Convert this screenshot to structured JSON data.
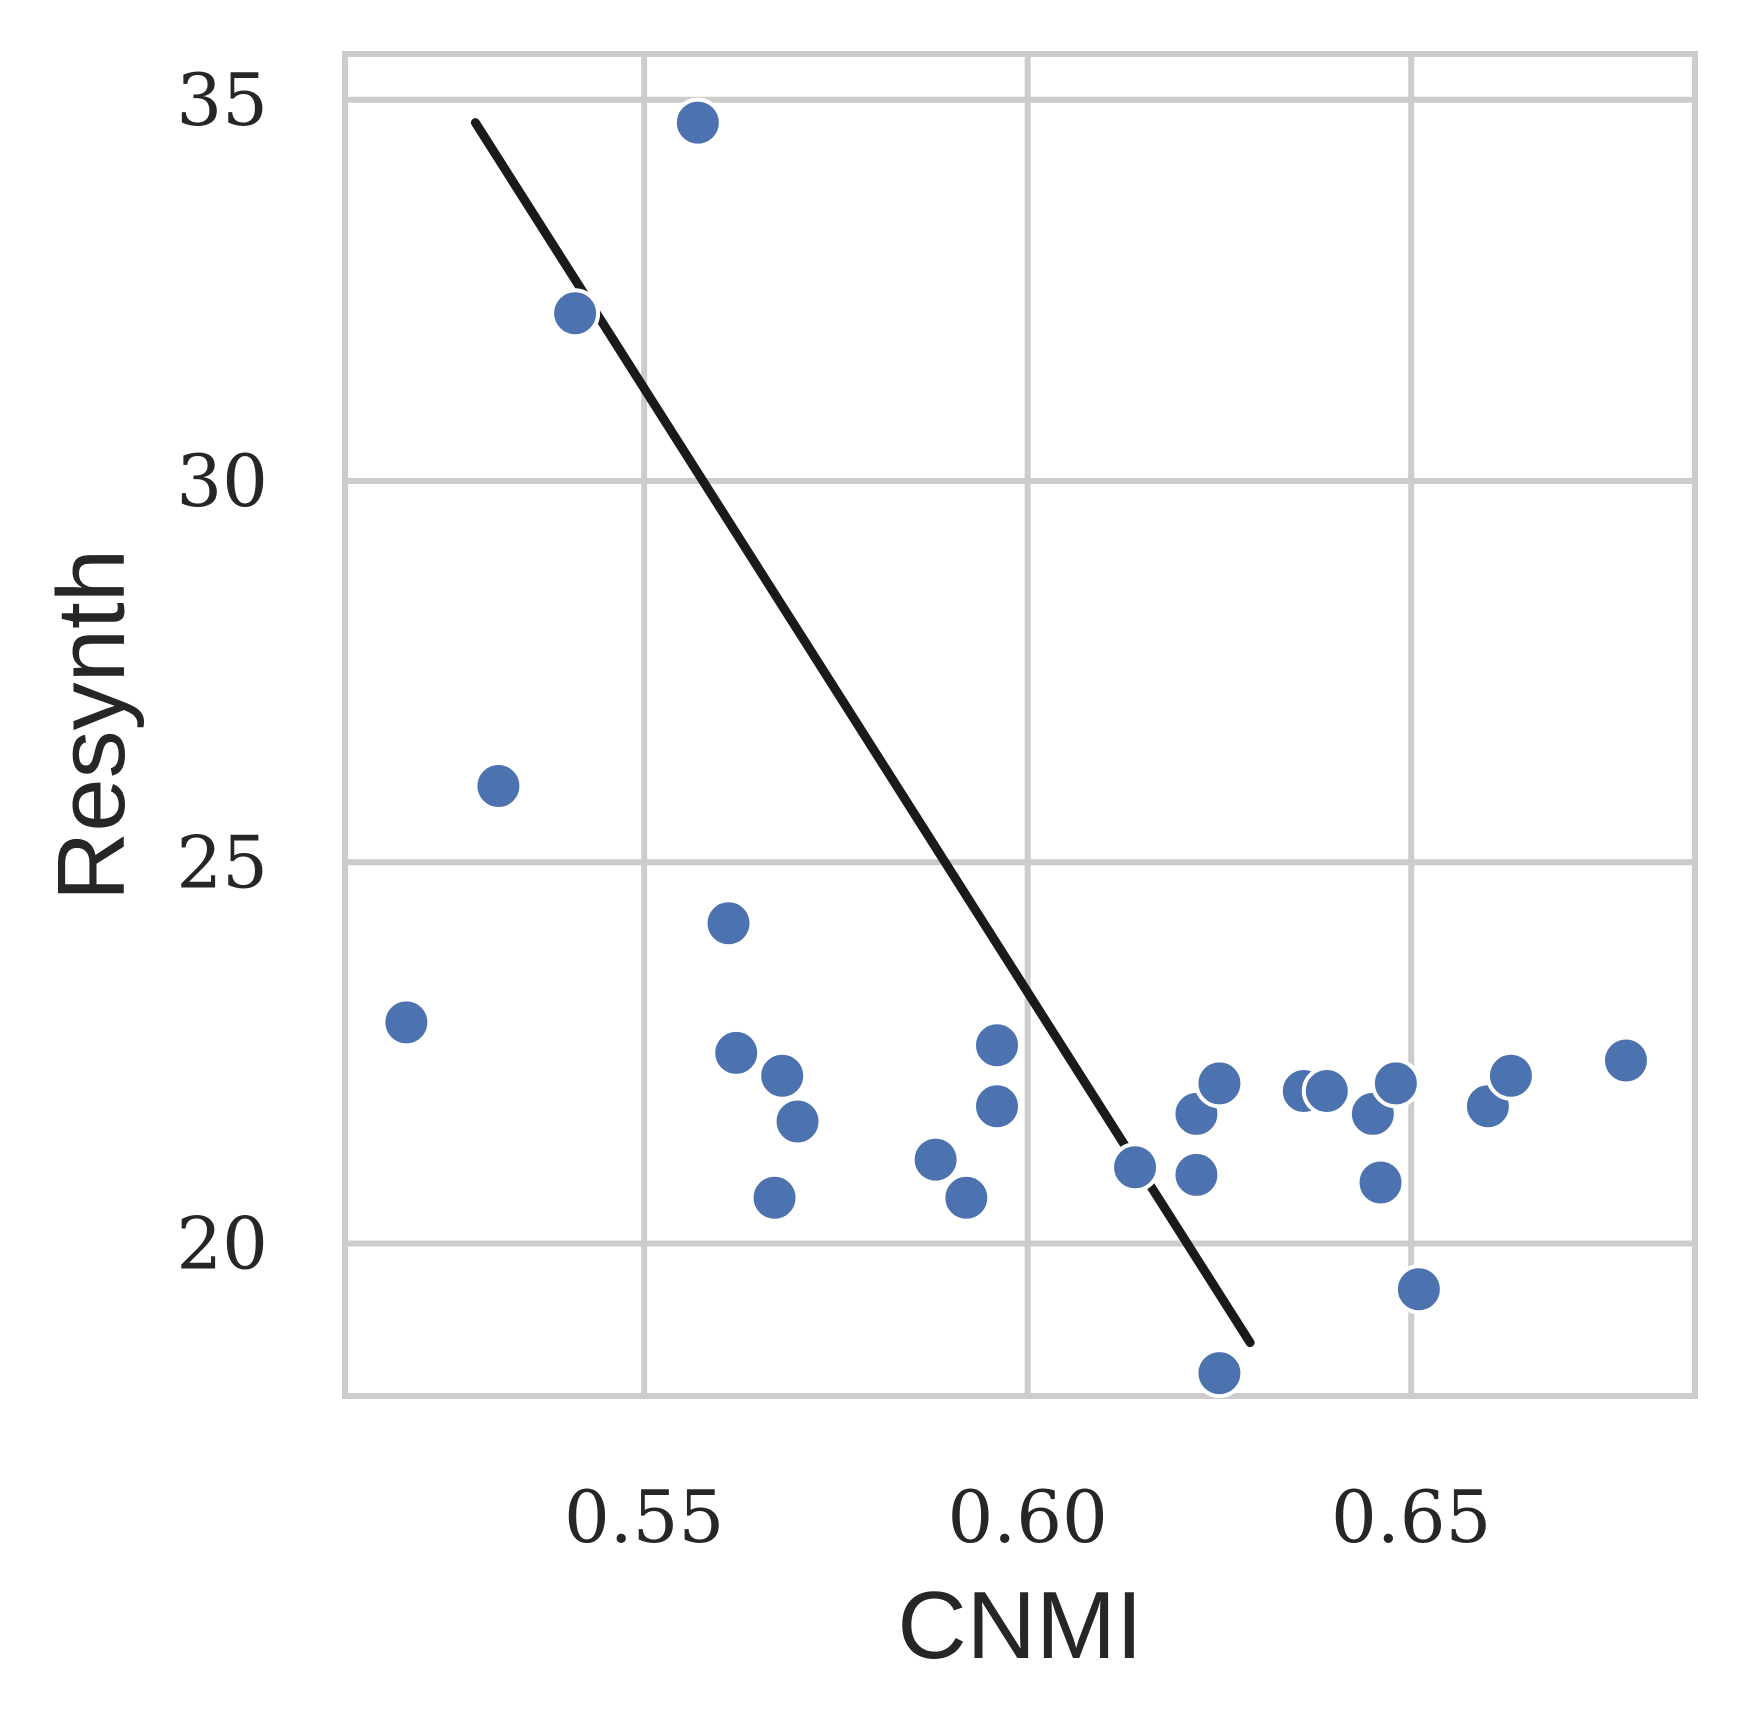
{
  "chart_data": {
    "type": "scatter",
    "title": "",
    "xlabel": "CNMI",
    "ylabel": "Resynth",
    "xlim": [
      0.511,
      0.687
    ],
    "ylim": [
      18.0,
      35.6
    ],
    "x_ticks": [
      0.55,
      0.6,
      0.65
    ],
    "x_tick_labels": [
      "0.55",
      "0.60",
      "0.65"
    ],
    "y_ticks": [
      20,
      25,
      30,
      35
    ],
    "y_tick_labels": [
      "20",
      "25",
      "30",
      "35"
    ],
    "grid": true,
    "legend": "none",
    "colors": {
      "points": "#4c72b0",
      "point_edge": "#ffffff",
      "regression_line": "#1a1a1a",
      "grid": "#cccccc",
      "frame": "#cccccc",
      "text": "#262626"
    },
    "series": [
      {
        "points": [
          {
            "x": 0.519,
            "y": 22.9
          },
          {
            "x": 0.531,
            "y": 26.0
          },
          {
            "x": 0.541,
            "y": 32.2
          },
          {
            "x": 0.557,
            "y": 34.7
          },
          {
            "x": 0.561,
            "y": 24.2
          },
          {
            "x": 0.562,
            "y": 22.5
          },
          {
            "x": 0.568,
            "y": 22.2
          },
          {
            "x": 0.57,
            "y": 21.6
          },
          {
            "x": 0.567,
            "y": 20.6
          },
          {
            "x": 0.588,
            "y": 21.1
          },
          {
            "x": 0.592,
            "y": 20.6
          },
          {
            "x": 0.596,
            "y": 22.6
          },
          {
            "x": 0.596,
            "y": 21.8
          },
          {
            "x": 0.614,
            "y": 21.0
          },
          {
            "x": 0.622,
            "y": 21.7
          },
          {
            "x": 0.625,
            "y": 22.1
          },
          {
            "x": 0.622,
            "y": 20.9
          },
          {
            "x": 0.625,
            "y": 18.3
          },
          {
            "x": 0.636,
            "y": 22.0
          },
          {
            "x": 0.639,
            "y": 22.0
          },
          {
            "x": 0.645,
            "y": 21.7
          },
          {
            "x": 0.648,
            "y": 22.1
          },
          {
            "x": 0.646,
            "y": 20.8
          },
          {
            "x": 0.651,
            "y": 19.4
          },
          {
            "x": 0.66,
            "y": 21.8
          },
          {
            "x": 0.663,
            "y": 22.2
          },
          {
            "x": 0.678,
            "y": 22.4
          }
        ]
      }
    ],
    "regression_line": [
      {
        "x": 0.528,
        "y": 34.7
      },
      {
        "x": 0.629,
        "y": 18.7
      }
    ]
  }
}
